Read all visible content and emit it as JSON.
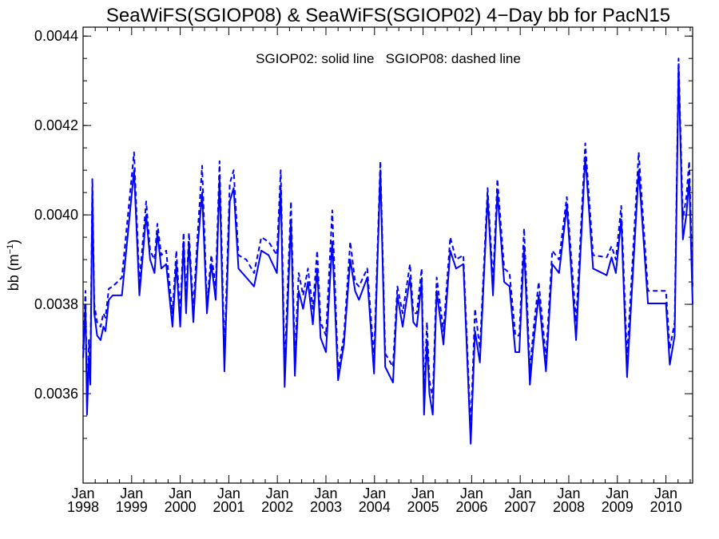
{
  "chart_data": {
    "type": "line",
    "title": "SeaWiFS(SGIOP08) & SeaWiFS(SGIOP02) 4−Day bb for PacN15",
    "ylabel": "bb (m",
    "ylabel_sup": "−1",
    "ylabel_close": ")",
    "annotation": "SGIOP02: solid line   SGIOP08: dashed line",
    "ylim": [
      0.0034,
      0.00442
    ],
    "xlim": [
      1998.0,
      2010.55
    ],
    "yticks": [
      {
        "value": 0.0036,
        "label": "0.0036"
      },
      {
        "value": 0.0038,
        "label": "0.0038"
      },
      {
        "value": 0.004,
        "label": "0.0040"
      },
      {
        "value": 0.0042,
        "label": "0.0042"
      },
      {
        "value": 0.0044,
        "label": "0.0044"
      }
    ],
    "xticks": [
      {
        "value": 1998,
        "month": "Jan",
        "year": "1998"
      },
      {
        "value": 1999,
        "month": "Jan",
        "year": "1999"
      },
      {
        "value": 2000,
        "month": "Jan",
        "year": "2000"
      },
      {
        "value": 2001,
        "month": "Jan",
        "year": "2001"
      },
      {
        "value": 2002,
        "month": "Jan",
        "year": "2002"
      },
      {
        "value": 2003,
        "month": "Jan",
        "year": "2003"
      },
      {
        "value": 2004,
        "month": "Jan",
        "year": "2004"
      },
      {
        "value": 2005,
        "month": "Jan",
        "year": "2005"
      },
      {
        "value": 2006,
        "month": "Jan",
        "year": "2006"
      },
      {
        "value": 2007,
        "month": "Jan",
        "year": "2007"
      },
      {
        "value": 2008,
        "month": "Jan",
        "year": "2008"
      },
      {
        "value": 2009,
        "month": "Jan",
        "year": "2009"
      },
      {
        "value": 2010,
        "month": "Jan",
        "year": "2010"
      }
    ],
    "grid": false,
    "line_color": "#0000ff",
    "series": [
      {
        "name": "SGIOP02",
        "style": "solid",
        "x": [
          1998.0,
          1998.05,
          1998.08,
          1998.12,
          1998.15,
          1998.19,
          1998.23,
          1998.29,
          1998.36,
          1998.42,
          1998.46,
          1998.53,
          1998.61,
          1998.8,
          1999.05,
          1999.16,
          1999.3,
          1999.38,
          1999.47,
          1999.53,
          1999.61,
          1999.71,
          1999.84,
          1999.92,
          2000.0,
          2000.07,
          2000.12,
          2000.18,
          2000.27,
          2000.36,
          2000.45,
          2000.55,
          2000.64,
          2000.73,
          2000.81,
          2000.91,
          2001.02,
          2001.1,
          2001.2,
          2001.36,
          2001.52,
          2001.67,
          2001.82,
          2001.99,
          2002.07,
          2002.15,
          2002.28,
          2002.36,
          2002.44,
          2002.53,
          2002.63,
          2002.73,
          2002.82,
          2002.89,
          2003.0,
          2003.13,
          2003.25,
          2003.37,
          2003.5,
          2003.6,
          2003.68,
          2003.85,
          2003.99,
          2004.12,
          2004.22,
          2004.38,
          2004.47,
          2004.58,
          2004.73,
          2004.8,
          2004.87,
          2004.97,
          2005.02,
          2005.08,
          2005.13,
          2005.2,
          2005.28,
          2005.42,
          2005.56,
          2005.68,
          2005.83,
          2005.98,
          2006.07,
          2006.17,
          2006.33,
          2006.44,
          2006.53,
          2006.67,
          2006.78,
          2006.9,
          2006.98,
          2007.08,
          2007.2,
          2007.27,
          2007.38,
          2007.53,
          2007.66,
          2007.8,
          2007.96,
          2008.15,
          2008.34,
          2008.5,
          2008.78,
          2008.88,
          2008.97,
          2009.08,
          2009.2,
          2009.44,
          2009.63,
          2010.0,
          2010.08,
          2010.18,
          2010.26,
          2010.35,
          2010.42,
          2010.48,
          2010.55
        ],
        "y": [
          0.00368,
          0.0038,
          0.003553,
          0.00368,
          0.00362,
          0.00406,
          0.00378,
          0.00373,
          0.00372,
          0.00375,
          0.00374,
          0.00381,
          0.00382,
          0.00382,
          0.0041,
          0.00382,
          0.004,
          0.0039,
          0.00387,
          0.00396,
          0.00388,
          0.00389,
          0.00375,
          0.00389,
          0.00375,
          0.00394,
          0.00378,
          0.00394,
          0.00376,
          0.00393,
          0.00405,
          0.00378,
          0.00389,
          0.00381,
          0.00408,
          0.00365,
          0.00403,
          0.00406,
          0.00388,
          0.00386,
          0.00384,
          0.00392,
          0.00391,
          0.00387,
          0.00406,
          0.003615,
          0.00399,
          0.00364,
          0.00383,
          0.00379,
          0.00385,
          0.003755,
          0.00388,
          0.003725,
          0.003693,
          0.00394,
          0.00363,
          0.00371,
          0.0039,
          0.00383,
          0.00381,
          0.00386,
          0.003645,
          0.0041,
          0.00366,
          0.003625,
          0.00382,
          0.00375,
          0.00386,
          0.00376,
          0.00375,
          0.00385,
          0.003553,
          0.00372,
          0.0036,
          0.003553,
          0.00383,
          0.00371,
          0.00392,
          0.00388,
          0.00389,
          0.003488,
          0.00374,
          0.00367,
          0.00404,
          0.00382,
          0.00405,
          0.00385,
          0.00384,
          0.003693,
          0.003693,
          0.00393,
          0.00362,
          0.00371,
          0.00382,
          0.00365,
          0.00389,
          0.00387,
          0.00402,
          0.00372,
          0.00413,
          0.00388,
          0.003865,
          0.003905,
          0.00387,
          0.00399,
          0.003637,
          0.0041,
          0.003802,
          0.003802,
          0.003665,
          0.00373,
          0.00433,
          0.003945,
          0.004,
          0.00408,
          0.0038
        ]
      },
      {
        "name": "SGIOP08",
        "style": "dashed",
        "x": [
          1998.0,
          1998.05,
          1998.08,
          1998.12,
          1998.15,
          1998.19,
          1998.23,
          1998.29,
          1998.36,
          1998.42,
          1998.46,
          1998.53,
          1998.61,
          1998.8,
          1999.05,
          1999.16,
          1999.3,
          1999.38,
          1999.47,
          1999.53,
          1999.61,
          1999.71,
          1999.84,
          1999.92,
          2000.0,
          2000.07,
          2000.12,
          2000.18,
          2000.27,
          2000.36,
          2000.45,
          2000.55,
          2000.64,
          2000.73,
          2000.81,
          2000.91,
          2001.02,
          2001.1,
          2001.2,
          2001.36,
          2001.52,
          2001.67,
          2001.82,
          2001.99,
          2002.07,
          2002.15,
          2002.28,
          2002.36,
          2002.44,
          2002.53,
          2002.63,
          2002.73,
          2002.82,
          2002.89,
          2003.0,
          2003.13,
          2003.25,
          2003.37,
          2003.5,
          2003.6,
          2003.68,
          2003.85,
          2003.99,
          2004.12,
          2004.22,
          2004.38,
          2004.47,
          2004.58,
          2004.73,
          2004.8,
          2004.87,
          2004.97,
          2005.02,
          2005.08,
          2005.13,
          2005.2,
          2005.28,
          2005.42,
          2005.56,
          2005.68,
          2005.83,
          2005.98,
          2006.07,
          2006.17,
          2006.33,
          2006.44,
          2006.53,
          2006.67,
          2006.78,
          2006.9,
          2006.98,
          2007.08,
          2007.2,
          2007.27,
          2007.38,
          2007.53,
          2007.66,
          2007.8,
          2007.96,
          2008.15,
          2008.34,
          2008.5,
          2008.78,
          2008.88,
          2008.97,
          2009.08,
          2009.2,
          2009.44,
          2009.63,
          2010.0,
          2010.08,
          2010.18,
          2010.26,
          2010.35,
          2010.42,
          2010.48,
          2010.55
        ],
        "y": [
          0.0037,
          0.00383,
          0.003585,
          0.00372,
          0.00365,
          0.00408,
          0.0038,
          0.00376,
          0.00375,
          0.00378,
          0.00377,
          0.003835,
          0.00384,
          0.00386,
          0.00414,
          0.00385,
          0.00403,
          0.00392,
          0.0039,
          0.00398,
          0.00391,
          0.00392,
          0.00378,
          0.00392,
          0.00378,
          0.00396,
          0.00381,
          0.00396,
          0.00379,
          0.00396,
          0.00411,
          0.0038,
          0.00391,
          0.00384,
          0.00412,
          0.00369,
          0.00407,
          0.0041,
          0.00391,
          0.0039,
          0.00387,
          0.00395,
          0.00394,
          0.00391,
          0.0041,
          0.00366,
          0.00403,
          0.00368,
          0.00387,
          0.00382,
          0.00388,
          0.00379,
          0.00392,
          0.00376,
          0.00373,
          0.00401,
          0.00365,
          0.00373,
          0.00394,
          0.00385,
          0.00384,
          0.00388,
          0.00368,
          0.00412,
          0.00369,
          0.00366,
          0.00384,
          0.00378,
          0.00389,
          0.00378,
          0.00378,
          0.00388,
          0.00359,
          0.00376,
          0.00363,
          0.00359,
          0.00386,
          0.00374,
          0.00395,
          0.0039,
          0.00391,
          0.00352,
          0.00379,
          0.0037,
          0.00406,
          0.00385,
          0.00408,
          0.00388,
          0.00387,
          0.00373,
          0.00373,
          0.00397,
          0.00365,
          0.00374,
          0.00385,
          0.00368,
          0.00392,
          0.0039,
          0.00404,
          0.00376,
          0.00416,
          0.00391,
          0.003905,
          0.00393,
          0.0039,
          0.00402,
          0.00368,
          0.00414,
          0.00383,
          0.00383,
          0.0037,
          0.00376,
          0.00435,
          0.00399,
          0.00404,
          0.00412,
          0.00384
        ]
      }
    ]
  }
}
